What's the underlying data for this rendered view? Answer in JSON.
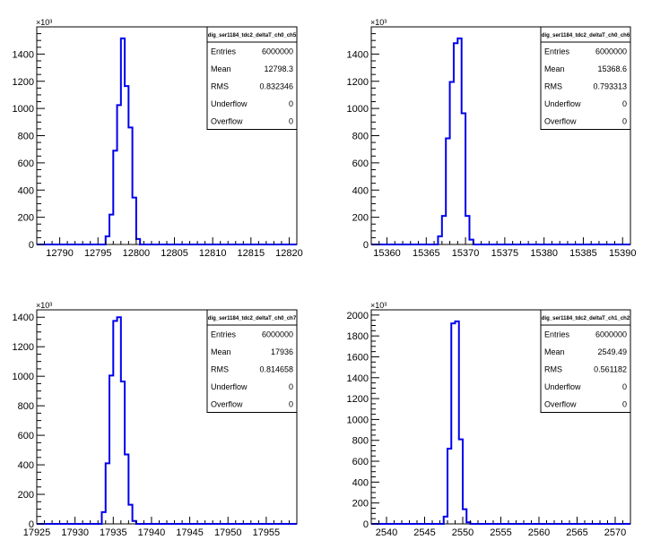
{
  "chart_data": [
    {
      "type": "histogram",
      "stats_title": "dig_ser1184_tdc2_deltaT_ch0_ch5",
      "y_exponent": "×10³",
      "xlim": [
        12787,
        12821
      ],
      "ylim": [
        0,
        1600
      ],
      "x_ticks": [
        12790,
        12795,
        12800,
        12805,
        12810,
        12815,
        12820
      ],
      "y_ticks": [
        0,
        200,
        400,
        600,
        800,
        1000,
        1200,
        1400
      ],
      "bin_edges": [
        12796.0,
        12796.5,
        12797.0,
        12797.5,
        12798.0,
        12798.5,
        12799.0,
        12799.5,
        12800.0,
        12800.5
      ],
      "bin_values": [
        60,
        220,
        690,
        1025,
        1515,
        1165,
        860,
        345,
        40
      ],
      "stats": [
        {
          "label": "Entries",
          "value": "6000000"
        },
        {
          "label": "Mean",
          "value": "12798.3"
        },
        {
          "label": "RMS",
          "value": "0.832346"
        },
        {
          "label": "Underflow",
          "value": "0"
        },
        {
          "label": "Overflow",
          "value": "0"
        }
      ]
    },
    {
      "type": "histogram",
      "stats_title": "dig_ser1184_tdc2_deltaT_ch0_ch6",
      "y_exponent": "×10³",
      "xlim": [
        15358,
        15391
      ],
      "ylim": [
        0,
        1600
      ],
      "x_ticks": [
        15360,
        15365,
        15370,
        15375,
        15380,
        15385,
        15390
      ],
      "y_ticks": [
        0,
        200,
        400,
        600,
        800,
        1000,
        1200,
        1400
      ],
      "bin_edges": [
        15366.5,
        15367.0,
        15367.5,
        15368.0,
        15368.5,
        15369.0,
        15369.5,
        15370.0,
        15370.5,
        15371.0
      ],
      "bin_values": [
        60,
        210,
        780,
        1195,
        1480,
        1515,
        965,
        210,
        35
      ],
      "stats": [
        {
          "label": "Entries",
          "value": "6000000"
        },
        {
          "label": "Mean",
          "value": "15368.6"
        },
        {
          "label": "RMS",
          "value": "0.793313"
        },
        {
          "label": "Underflow",
          "value": "0"
        },
        {
          "label": "Overflow",
          "value": "0"
        }
      ]
    },
    {
      "type": "histogram",
      "stats_title": "dig_ser1184_tdc2_deltaT_ch0_ch7",
      "y_exponent": "×10³",
      "xlim": [
        17925,
        17959
      ],
      "ylim": [
        0,
        1450
      ],
      "x_ticks": [
        17925,
        17930,
        17935,
        17940,
        17945,
        17950,
        17955
      ],
      "y_ticks": [
        0,
        200,
        400,
        600,
        800,
        1000,
        1200,
        1400
      ],
      "bin_edges": [
        17933.5,
        17934.0,
        17934.5,
        17935.0,
        17935.5,
        17936.0,
        17936.5,
        17937.0,
        17937.5,
        17938.0
      ],
      "bin_values": [
        80,
        410,
        1005,
        1375,
        1400,
        965,
        470,
        130,
        20
      ],
      "stats": [
        {
          "label": "Entries",
          "value": "6000000"
        },
        {
          "label": "Mean",
          "value": "17936"
        },
        {
          "label": "RMS",
          "value": "0.814658"
        },
        {
          "label": "Underflow",
          "value": "0"
        },
        {
          "label": "Overflow",
          "value": "0"
        }
      ]
    },
    {
      "type": "histogram",
      "stats_title": "dig_ser1184_tdc2_deltaT_ch1_ch2",
      "y_exponent": "×10³",
      "xlim": [
        2538,
        2572
      ],
      "ylim": [
        0,
        2050
      ],
      "x_ticks": [
        2540,
        2545,
        2550,
        2555,
        2560,
        2565,
        2570
      ],
      "y_ticks": [
        0,
        200,
        400,
        600,
        800,
        1000,
        1200,
        1400,
        1600,
        1800,
        2000
      ],
      "bin_edges": [
        2547.5,
        2548.0,
        2548.5,
        2549.0,
        2549.5,
        2550.0,
        2550.5,
        2551.0
      ],
      "bin_values": [
        70,
        720,
        1920,
        1940,
        810,
        140,
        15
      ],
      "stats": [
        {
          "label": "Entries",
          "value": "6000000"
        },
        {
          "label": "Mean",
          "value": "2549.49"
        },
        {
          "label": "RMS",
          "value": "0.561182"
        },
        {
          "label": "Underflow",
          "value": "0"
        },
        {
          "label": "Overflow",
          "value": "0"
        }
      ]
    }
  ]
}
